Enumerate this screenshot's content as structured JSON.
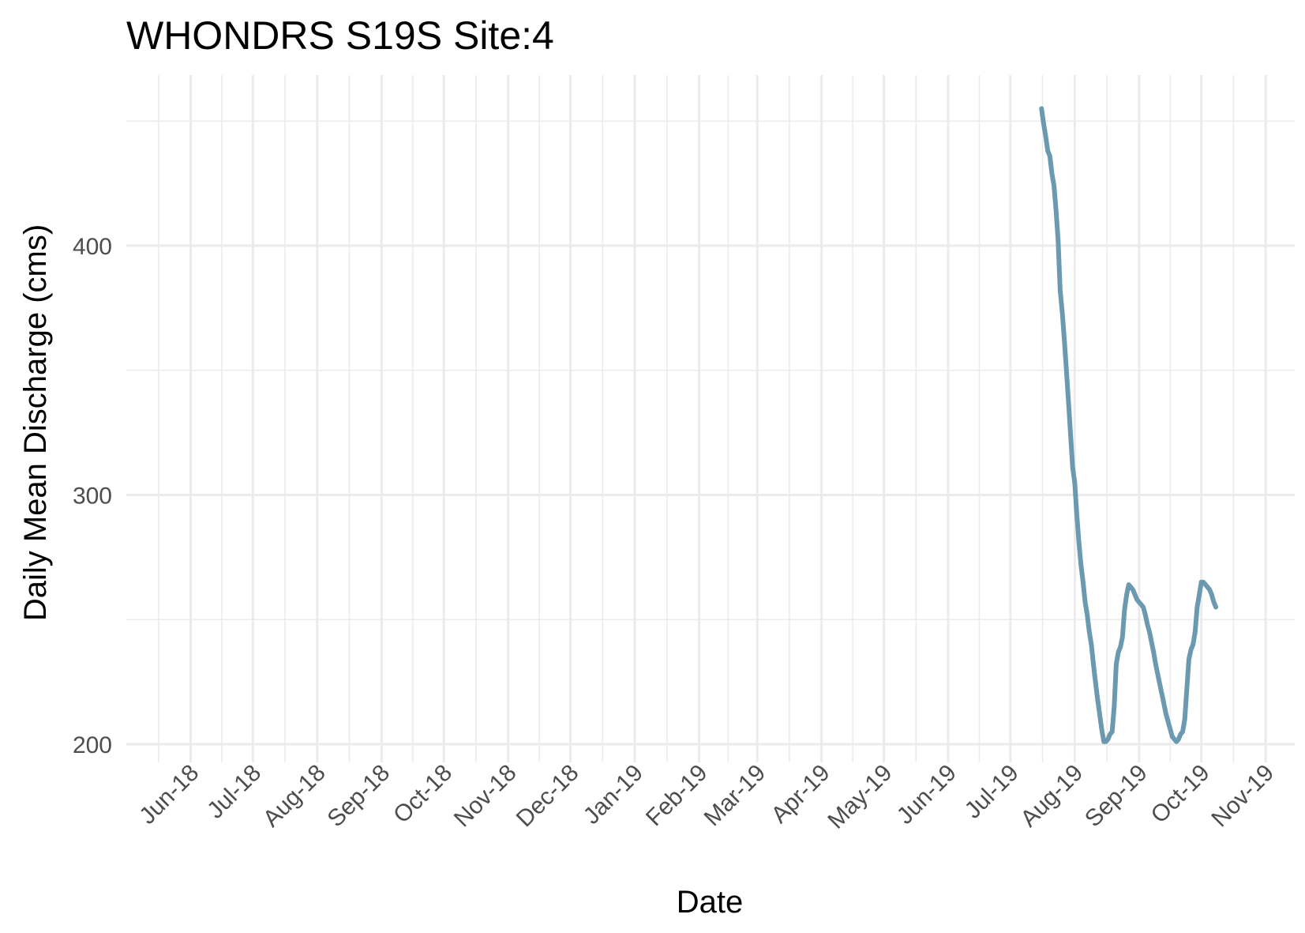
{
  "chart_data": {
    "type": "line",
    "title": "WHONDRS S19S Site:4",
    "xlabel": "Date",
    "ylabel": "Daily Mean Discharge (cms)",
    "xlim": [
      "2018-05-01",
      "2019-11-15"
    ],
    "ylim": [
      200,
      460
    ],
    "x_ticks": [
      {
        "date": "2018-06-01",
        "label": "Jun-18"
      },
      {
        "date": "2018-07-01",
        "label": "Jul-18"
      },
      {
        "date": "2018-08-01",
        "label": "Aug-18"
      },
      {
        "date": "2018-09-01",
        "label": "Sep-18"
      },
      {
        "date": "2018-10-01",
        "label": "Oct-18"
      },
      {
        "date": "2018-11-01",
        "label": "Nov-18"
      },
      {
        "date": "2018-12-01",
        "label": "Dec-18"
      },
      {
        "date": "2019-01-01",
        "label": "Jan-19"
      },
      {
        "date": "2019-02-01",
        "label": "Feb-19"
      },
      {
        "date": "2019-03-01",
        "label": "Mar-19"
      },
      {
        "date": "2019-04-01",
        "label": "Apr-19"
      },
      {
        "date": "2019-05-01",
        "label": "May-19"
      },
      {
        "date": "2019-06-01",
        "label": "Jun-19"
      },
      {
        "date": "2019-07-01",
        "label": "Jul-19"
      },
      {
        "date": "2019-08-01",
        "label": "Aug-19"
      },
      {
        "date": "2019-09-01",
        "label": "Sep-19"
      },
      {
        "date": "2019-10-01",
        "label": "Oct-19"
      },
      {
        "date": "2019-11-01",
        "label": "Nov-19"
      }
    ],
    "y_ticks": [
      200,
      300,
      400
    ],
    "grid": true,
    "line_color": "#6b9ab0",
    "series": [
      {
        "x": [
          "2019-07-16",
          "2019-07-17",
          "2019-07-18",
          "2019-07-19",
          "2019-07-20",
          "2019-07-21",
          "2019-07-22",
          "2019-07-23",
          "2019-07-24",
          "2019-07-25",
          "2019-07-26",
          "2019-07-27",
          "2019-07-28",
          "2019-07-29",
          "2019-07-30",
          "2019-07-31",
          "2019-08-01",
          "2019-08-02",
          "2019-08-03",
          "2019-08-04",
          "2019-08-05",
          "2019-08-06",
          "2019-08-07",
          "2019-08-08",
          "2019-08-09",
          "2019-08-10",
          "2019-08-11",
          "2019-08-12",
          "2019-08-13",
          "2019-08-14",
          "2019-08-15",
          "2019-08-16",
          "2019-08-17",
          "2019-08-18",
          "2019-08-19",
          "2019-08-20",
          "2019-08-21",
          "2019-08-22",
          "2019-08-23",
          "2019-08-24",
          "2019-08-25",
          "2019-08-26",
          "2019-08-27",
          "2019-08-28",
          "2019-08-29",
          "2019-08-30",
          "2019-08-31",
          "2019-09-01",
          "2019-09-02",
          "2019-09-03",
          "2019-09-04",
          "2019-09-05",
          "2019-09-06",
          "2019-09-07",
          "2019-09-08",
          "2019-09-09",
          "2019-09-10",
          "2019-09-11",
          "2019-09-12",
          "2019-09-13",
          "2019-09-14",
          "2019-09-15",
          "2019-09-16",
          "2019-09-17",
          "2019-09-18",
          "2019-09-19",
          "2019-09-20",
          "2019-09-21",
          "2019-09-22",
          "2019-09-23",
          "2019-09-24",
          "2019-09-25",
          "2019-09-26",
          "2019-09-27",
          "2019-09-28",
          "2019-09-29",
          "2019-09-30",
          "2019-10-01",
          "2019-10-02",
          "2019-10-03",
          "2019-10-04",
          "2019-10-05",
          "2019-10-06",
          "2019-10-07",
          "2019-10-08"
        ],
        "y": [
          455,
          449,
          444,
          438,
          436,
          429,
          424,
          414,
          402,
          382,
          373,
          362,
          350,
          337,
          324,
          311,
          305,
          292,
          281,
          272,
          265,
          257,
          252,
          245,
          240,
          232,
          225,
          218,
          212,
          206,
          201,
          201,
          202,
          204,
          205,
          215,
          232,
          237,
          239,
          243,
          254,
          260,
          264,
          263,
          262,
          260,
          258,
          257,
          256,
          255,
          252,
          248,
          245,
          241,
          237,
          232,
          228,
          224,
          220,
          216,
          212,
          209,
          206,
          203,
          202,
          201,
          202,
          204,
          205,
          210,
          222,
          234,
          238,
          240,
          245,
          255,
          260,
          265,
          265,
          264,
          263,
          262,
          260,
          257,
          255
        ]
      }
    ]
  }
}
